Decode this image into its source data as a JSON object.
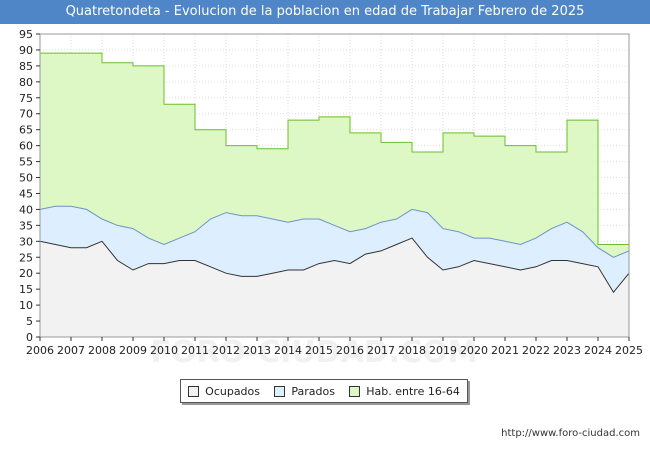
{
  "title": "Quatretondeta - Evolucion de la poblacion en edad de Trabajar Febrero de 2025",
  "source": "http://www.foro-ciudad.com",
  "watermark": "FORO-CIUDAD.COM",
  "colors": {
    "title_bg": "#4e86c8",
    "ocupados": "#f2f2f2",
    "parados": "#ddeeff",
    "hab": "#ddf7c5",
    "hab_line": "#6abf2a",
    "parados_line": "#6a95c8",
    "ocupados_line": "#333333"
  },
  "chart_data": {
    "type": "area",
    "title": "Quatretondeta - Evolucion de la poblacion en edad de Trabajar Febrero de 2025",
    "xlabel": "",
    "ylabel": "",
    "xlim": [
      2006,
      2025
    ],
    "ylim": [
      0,
      95
    ],
    "x_ticks": [
      "2006",
      "2007",
      "2008",
      "2009",
      "2010",
      "2011",
      "2012",
      "2013",
      "2014",
      "2015",
      "2016",
      "2017",
      "2018",
      "2019",
      "2020",
      "2021",
      "2022",
      "2023",
      "2024",
      "2025"
    ],
    "y_ticks": [
      0,
      5,
      10,
      15,
      20,
      25,
      30,
      35,
      40,
      45,
      50,
      55,
      60,
      65,
      70,
      75,
      80,
      85,
      90,
      95
    ],
    "grid": true,
    "legend_position": "bottom",
    "series": [
      {
        "name": "Hab. entre 16-64",
        "step": true,
        "x": [
          2006,
          2007,
          2008,
          2009,
          2010,
          2011,
          2012,
          2013,
          2014,
          2015,
          2016,
          2017,
          2018,
          2019,
          2020,
          2021,
          2022,
          2023,
          2024
        ],
        "values": [
          89,
          89,
          86,
          85,
          73,
          65,
          60,
          59,
          68,
          69,
          64,
          61,
          58,
          64,
          63,
          60,
          58,
          68,
          29
        ]
      },
      {
        "name": "Parados",
        "x": [
          2006,
          2006.5,
          2007,
          2007.5,
          2008,
          2008.5,
          2009,
          2009.5,
          2010,
          2010.5,
          2011,
          2011.5,
          2012,
          2012.5,
          2013,
          2013.5,
          2014,
          2014.5,
          2015,
          2015.5,
          2016,
          2016.5,
          2017,
          2017.5,
          2018,
          2018.5,
          2019,
          2019.5,
          2020,
          2020.5,
          2021,
          2021.5,
          2022,
          2022.5,
          2023,
          2023.5,
          2024,
          2024.5,
          2025
        ],
        "values": [
          40,
          41,
          41,
          40,
          37,
          35,
          34,
          31,
          29,
          31,
          33,
          37,
          39,
          38,
          38,
          37,
          36,
          37,
          37,
          35,
          33,
          34,
          36,
          37,
          40,
          39,
          34,
          33,
          31,
          31,
          30,
          29,
          31,
          34,
          36,
          33,
          28,
          25,
          27
        ]
      },
      {
        "name": "Ocupados",
        "x": [
          2006,
          2006.5,
          2007,
          2007.5,
          2008,
          2008.5,
          2009,
          2009.5,
          2010,
          2010.5,
          2011,
          2011.5,
          2012,
          2012.5,
          2013,
          2013.5,
          2014,
          2014.5,
          2015,
          2015.5,
          2016,
          2016.5,
          2017,
          2017.5,
          2018,
          2018.5,
          2019,
          2019.5,
          2020,
          2020.5,
          2021,
          2021.5,
          2022,
          2022.5,
          2023,
          2023.5,
          2024,
          2024.5,
          2025
        ],
        "values": [
          30,
          29,
          28,
          28,
          30,
          24,
          21,
          23,
          23,
          24,
          24,
          22,
          20,
          19,
          19,
          20,
          21,
          21,
          23,
          24,
          23,
          26,
          27,
          29,
          31,
          25,
          21,
          22,
          24,
          23,
          22,
          21,
          22,
          24,
          24,
          23,
          22,
          14,
          20
        ]
      }
    ]
  },
  "legend": {
    "ocupados": "Ocupados",
    "parados": "Parados",
    "hab": "Hab. entre 16-64"
  }
}
